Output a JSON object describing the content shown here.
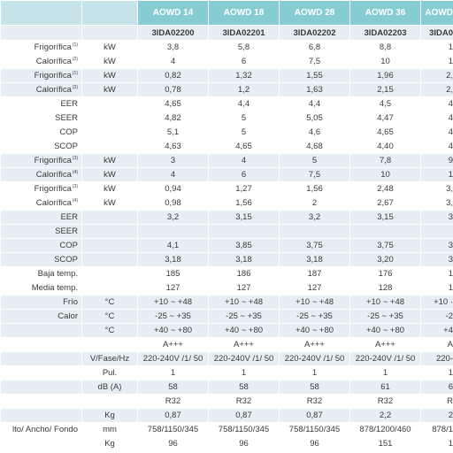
{
  "header": {
    "models": [
      "AOWD 14",
      "AOWD 18",
      "AOWD 28",
      "AOWD 36",
      "AOWD"
    ],
    "codes": [
      "3IDA02200",
      "3IDA02201",
      "3IDA02202",
      "3IDA02203",
      "3IDA0"
    ]
  },
  "rows": [
    {
      "label": "Frigorífica",
      "note": "(1)",
      "unit": "kW",
      "cells": [
        "3,8",
        "5,8",
        "6,8",
        "8,8",
        "1"
      ]
    },
    {
      "label": "Calorífica",
      "note": "(2)",
      "unit": "kW",
      "cells": [
        "4",
        "6",
        "7,5",
        "10",
        "1"
      ]
    },
    {
      "label": "Frigorífica",
      "note": "(1)",
      "unit": "kW",
      "cells": [
        "0,82",
        "1,32",
        "1,55",
        "1,96",
        "2,"
      ]
    },
    {
      "label": "Calorífica",
      "note": "(2)",
      "unit": "kW",
      "cells": [
        "0,78",
        "1,2",
        "1,63",
        "2,15",
        "2,"
      ]
    },
    {
      "label": "EER",
      "cells": [
        "4,65",
        "4,4",
        "4,4",
        "4,5",
        "4"
      ]
    },
    {
      "label": "SEER",
      "cells": [
        "4,82",
        "5",
        "5,05",
        "4,47",
        "4"
      ]
    },
    {
      "label": "COP",
      "cells": [
        "5,1",
        "5",
        "4,6",
        "4,65",
        "4"
      ]
    },
    {
      "label": "SCOP",
      "cells": [
        "4,63",
        "4,65",
        "4,68",
        "4,40",
        "4"
      ]
    },
    {
      "label": "Frigorífica",
      "note": "(3)",
      "unit": "kW",
      "cells": [
        "3",
        "4",
        "5",
        "7,8",
        "9"
      ]
    },
    {
      "label": "Calorífica",
      "note": "(4)",
      "unit": "kW",
      "cells": [
        "4",
        "6",
        "7,5",
        "10",
        "1"
      ]
    },
    {
      "label": "Frigorífica",
      "note": "(3)",
      "unit": "kW",
      "cells": [
        "0,94",
        "1,27",
        "1,56",
        "2,48",
        "3,"
      ]
    },
    {
      "label": "Calorífica",
      "note": "(4)",
      "unit": "kW",
      "cells": [
        "0,98",
        "1,56",
        "2",
        "2,67",
        "3,"
      ]
    },
    {
      "label": "EER",
      "cells": [
        "3,2",
        "3,15",
        "3,2",
        "3,15",
        "3"
      ]
    },
    {
      "label": "SEER",
      "cells": [
        null,
        null,
        null,
        null,
        null
      ]
    },
    {
      "label": "COP",
      "cells": [
        "4,1",
        "3,85",
        "3,75",
        "3,75",
        "3"
      ]
    },
    {
      "label": "SCOP",
      "cells": [
        "3,18",
        "3,18",
        "3,18",
        "3,20",
        "3"
      ]
    },
    {
      "label": "Baja temp.",
      "cells": [
        "185",
        "186",
        "187",
        "176",
        "1"
      ]
    },
    {
      "label": "Media temp.",
      "cells": [
        "127",
        "127",
        "127",
        "128",
        "1"
      ]
    },
    {
      "label": "Frío",
      "unit": "°C",
      "cells": [
        "+10 ~ +48",
        "+10 ~ +48",
        "+10 ~ +48",
        "+10 ~ +48",
        "+10 ·"
      ]
    },
    {
      "label": "Calor",
      "unit": "°C",
      "cells": [
        "-25 ~ +35",
        "-25 ~ +35",
        "-25 ~ +35",
        "-25 ~ +35",
        "-2"
      ]
    },
    {
      "unit": "°C",
      "cells": [
        "+40 ~ +80",
        "+40 ~ +80",
        "+40 ~ +80",
        "+40 ~ +80",
        "+4"
      ]
    },
    {
      "cells": [
        "A+++",
        "A+++",
        "A+++",
        "A+++",
        "A"
      ]
    },
    {
      "unit": "V/Fase/Hz",
      "cells": [
        "220-240V /1/ 50",
        "220-240V /1/ 50",
        "220-240V /1/ 50",
        "220-240V /1/ 50",
        "220-"
      ]
    },
    {
      "unit": "Pul.",
      "cells": [
        "1",
        "1",
        "1",
        "1",
        "1"
      ]
    },
    {
      "unit": "dB (A)",
      "cells": [
        "58",
        "58",
        "58",
        "61",
        "6"
      ]
    },
    {
      "cells": [
        "R32",
        "R32",
        "R32",
        "R32",
        "R"
      ]
    },
    {
      "unit": "Kg",
      "cells": [
        "0,87",
        "0,87",
        "0,87",
        "2,2",
        "2"
      ]
    },
    {
      "label": "lto/ Ancho/ Fondo",
      "unit": "mm",
      "cells": [
        "758/1150/345",
        "758/1150/345",
        "758/1150/345",
        "878/1200/460",
        "878/1"
      ]
    },
    {
      "unit": "Kg",
      "cells": [
        "96",
        "96",
        "96",
        "151",
        "1"
      ]
    }
  ]
}
